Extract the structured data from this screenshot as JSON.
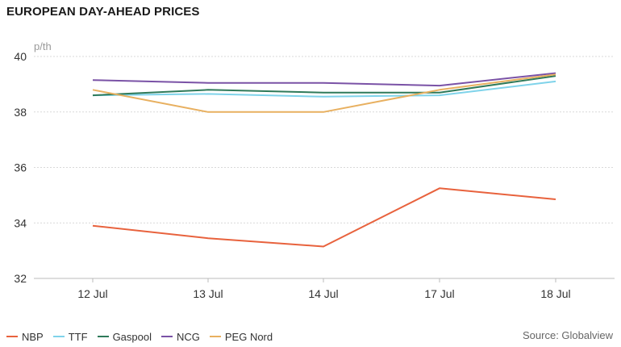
{
  "title": "EUROPEAN DAY-AHEAD PRICES",
  "source": "Source: Globalview",
  "chart_data": {
    "type": "line",
    "title": "EUROPEAN DAY-AHEAD PRICES",
    "ylabel": "p/th",
    "xlabel": "",
    "ylim": [
      32,
      40
    ],
    "yticks": [
      32,
      34,
      36,
      38,
      40
    ],
    "grid": true,
    "legend_position": "bottom-left",
    "categories": [
      "12 Jul",
      "13 Jul",
      "14 Jul",
      "17 Jul",
      "18 Jul"
    ],
    "series": [
      {
        "name": "NBP",
        "color": "#e8623d",
        "values": [
          33.9,
          33.45,
          33.15,
          35.25,
          34.85
        ]
      },
      {
        "name": "TTF",
        "color": "#7fd3ea",
        "values": [
          38.6,
          38.65,
          38.55,
          38.6,
          39.1
        ]
      },
      {
        "name": "Gaspool",
        "color": "#2f7a5a",
        "values": [
          38.6,
          38.8,
          38.7,
          38.7,
          39.3
        ]
      },
      {
        "name": "NCG",
        "color": "#7a52a6",
        "values": [
          39.15,
          39.05,
          39.05,
          38.95,
          39.4
        ]
      },
      {
        "name": "PEG Nord",
        "color": "#e8b060",
        "values": [
          38.8,
          38.0,
          38.0,
          38.8,
          39.35
        ]
      }
    ]
  }
}
